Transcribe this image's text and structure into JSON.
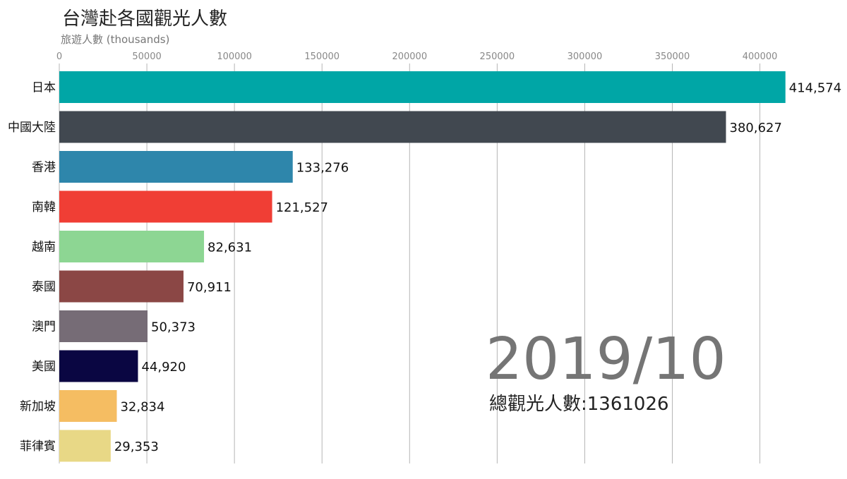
{
  "chart_data": {
    "type": "bar",
    "orientation": "horizontal",
    "title": "台灣赴各國觀光人數",
    "subtitle": "旅遊人數 (thousands)",
    "xlim": [
      0,
      414574
    ],
    "xticks": [
      0,
      50000,
      100000,
      150000,
      200000,
      250000,
      300000,
      350000,
      400000
    ],
    "tick_labels": [
      "0",
      "50000",
      "100000",
      "150000",
      "200000",
      "250000",
      "300000",
      "350000",
      "400000"
    ],
    "grid": true,
    "categories": [
      "日本",
      "中國大陸",
      "香港",
      "南韓",
      "越南",
      "泰國",
      "澳門",
      "美國",
      "新加坡",
      "菲律賓"
    ],
    "values": [
      414574,
      380627,
      133276,
      121527,
      82631,
      70911,
      50373,
      44920,
      32834,
      29353
    ],
    "value_labels": [
      "414,574",
      "380,627",
      "133,276",
      "121,527",
      "82,631",
      "70,911",
      "50,373",
      "44,920",
      "32,834",
      "29,353"
    ],
    "colors": [
      "#00a6a6",
      "#414850",
      "#2e86ab",
      "#f03e35",
      "#8dd693",
      "#8b4745",
      "#766c76",
      "#0a0642",
      "#f5bd62",
      "#e8d886"
    ],
    "period": "2019/10",
    "total_label": "總觀光人數:",
    "total_value": "1361026"
  }
}
